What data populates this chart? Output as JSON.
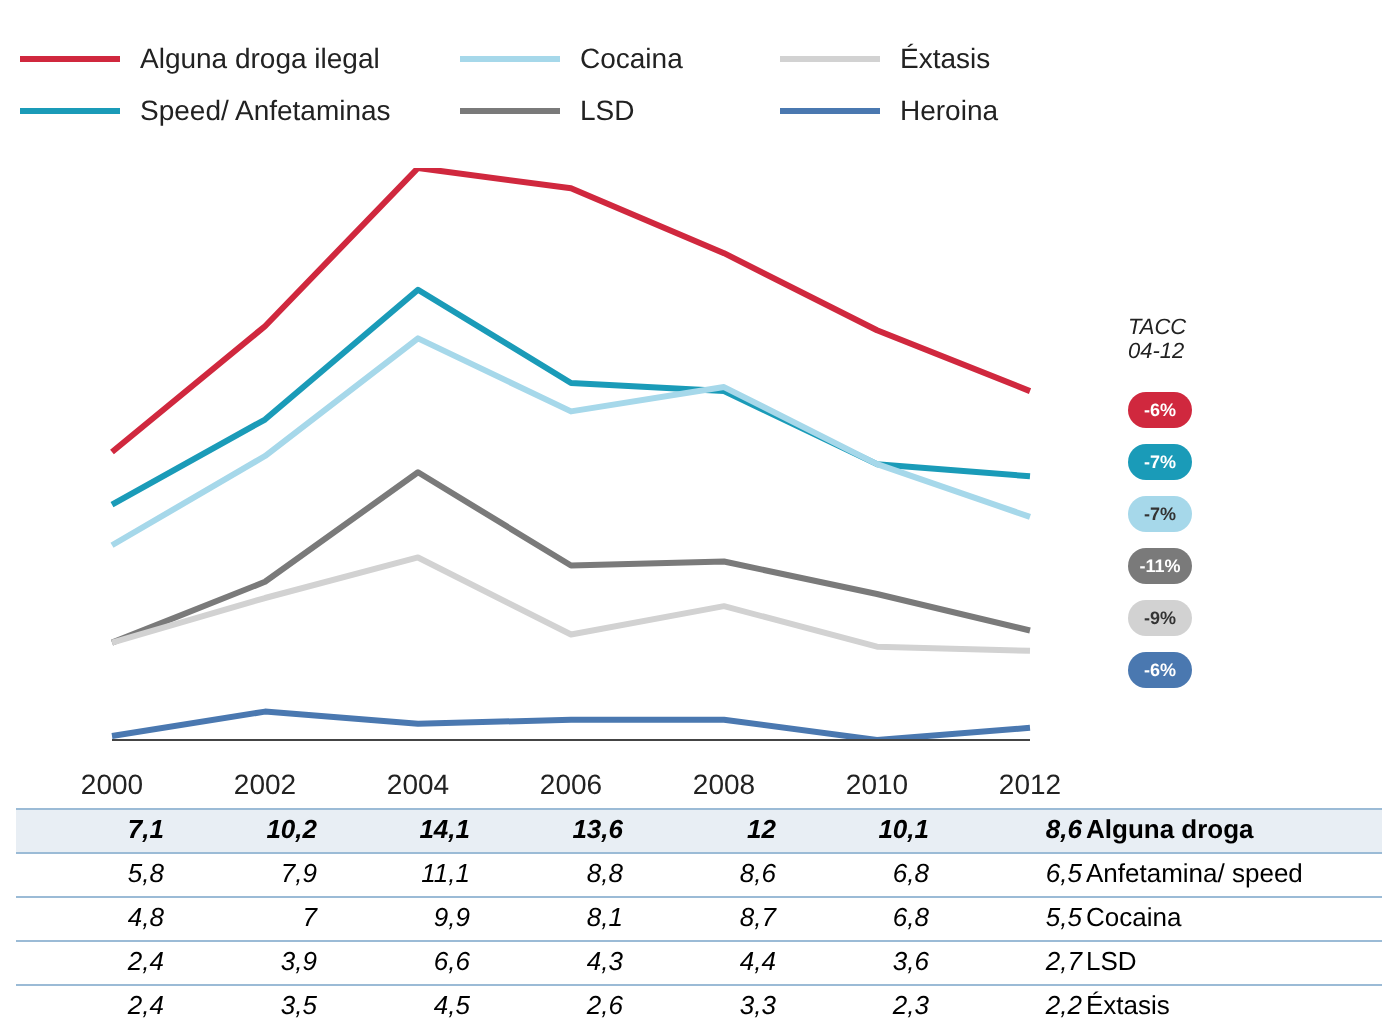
{
  "chart_data": {
    "type": "line",
    "categories": [
      "2000",
      "2002",
      "2004",
      "2006",
      "2008",
      "2010",
      "2012"
    ],
    "series": [
      {
        "name": "Alguna droga ilegal",
        "color": "#d0283e",
        "values": [
          7.1,
          10.2,
          14.1,
          13.6,
          12,
          10.1,
          8.6
        ],
        "value_labels": [
          "7,1",
          "10,2",
          "14,1",
          "13,6",
          "12",
          "10,1",
          "8,6"
        ]
      },
      {
        "name": "Speed/ Anfetaminas",
        "color": "#1a9bb8",
        "values": [
          5.8,
          7.9,
          11.1,
          8.8,
          8.6,
          6.8,
          6.5
        ],
        "value_labels": [
          "5,8",
          "7,9",
          "11,1",
          "8,8",
          "8,6",
          "6,8",
          "6,5"
        ]
      },
      {
        "name": "Cocaina",
        "color": "#a6d8ea",
        "values": [
          4.8,
          7,
          9.9,
          8.1,
          8.7,
          6.8,
          5.5
        ],
        "value_labels": [
          "4,8",
          "7",
          "9,9",
          "8,1",
          "8,7",
          "6,8",
          "5,5"
        ]
      },
      {
        "name": "LSD",
        "color": "#7a7a7a",
        "values": [
          2.4,
          3.9,
          6.6,
          4.3,
          4.4,
          3.6,
          2.7
        ],
        "value_labels": [
          "2,4",
          "3,9",
          "6,6",
          "4,3",
          "4,4",
          "3,6",
          "2,7"
        ]
      },
      {
        "name": "Éxtasis",
        "color": "#d2d2d2",
        "values": [
          2.4,
          3.5,
          4.5,
          2.6,
          3.3,
          2.3,
          2.2
        ],
        "value_labels": [
          "2,4",
          "3,5",
          "4,5",
          "2,6",
          "3,3",
          "2,3",
          "2,2"
        ]
      },
      {
        "name": "Heroina",
        "color": "#4a78b0",
        "values": [
          0.1,
          0.7,
          0.4,
          0.5,
          0.5,
          0,
          0.3
        ]
      }
    ],
    "annotations": [
      "TACC\n04-12",
      "-6%",
      "-7%",
      "-7%",
      "-11%",
      "-9%",
      "-6%",
      "Alguna droga",
      "Anfetamina/ speed",
      "Cocaina",
      "LSD",
      "Éxtasis"
    ],
    "legend": "top",
    "grid": false,
    "marker": "none",
    "line_style": "solid"
  }
}
